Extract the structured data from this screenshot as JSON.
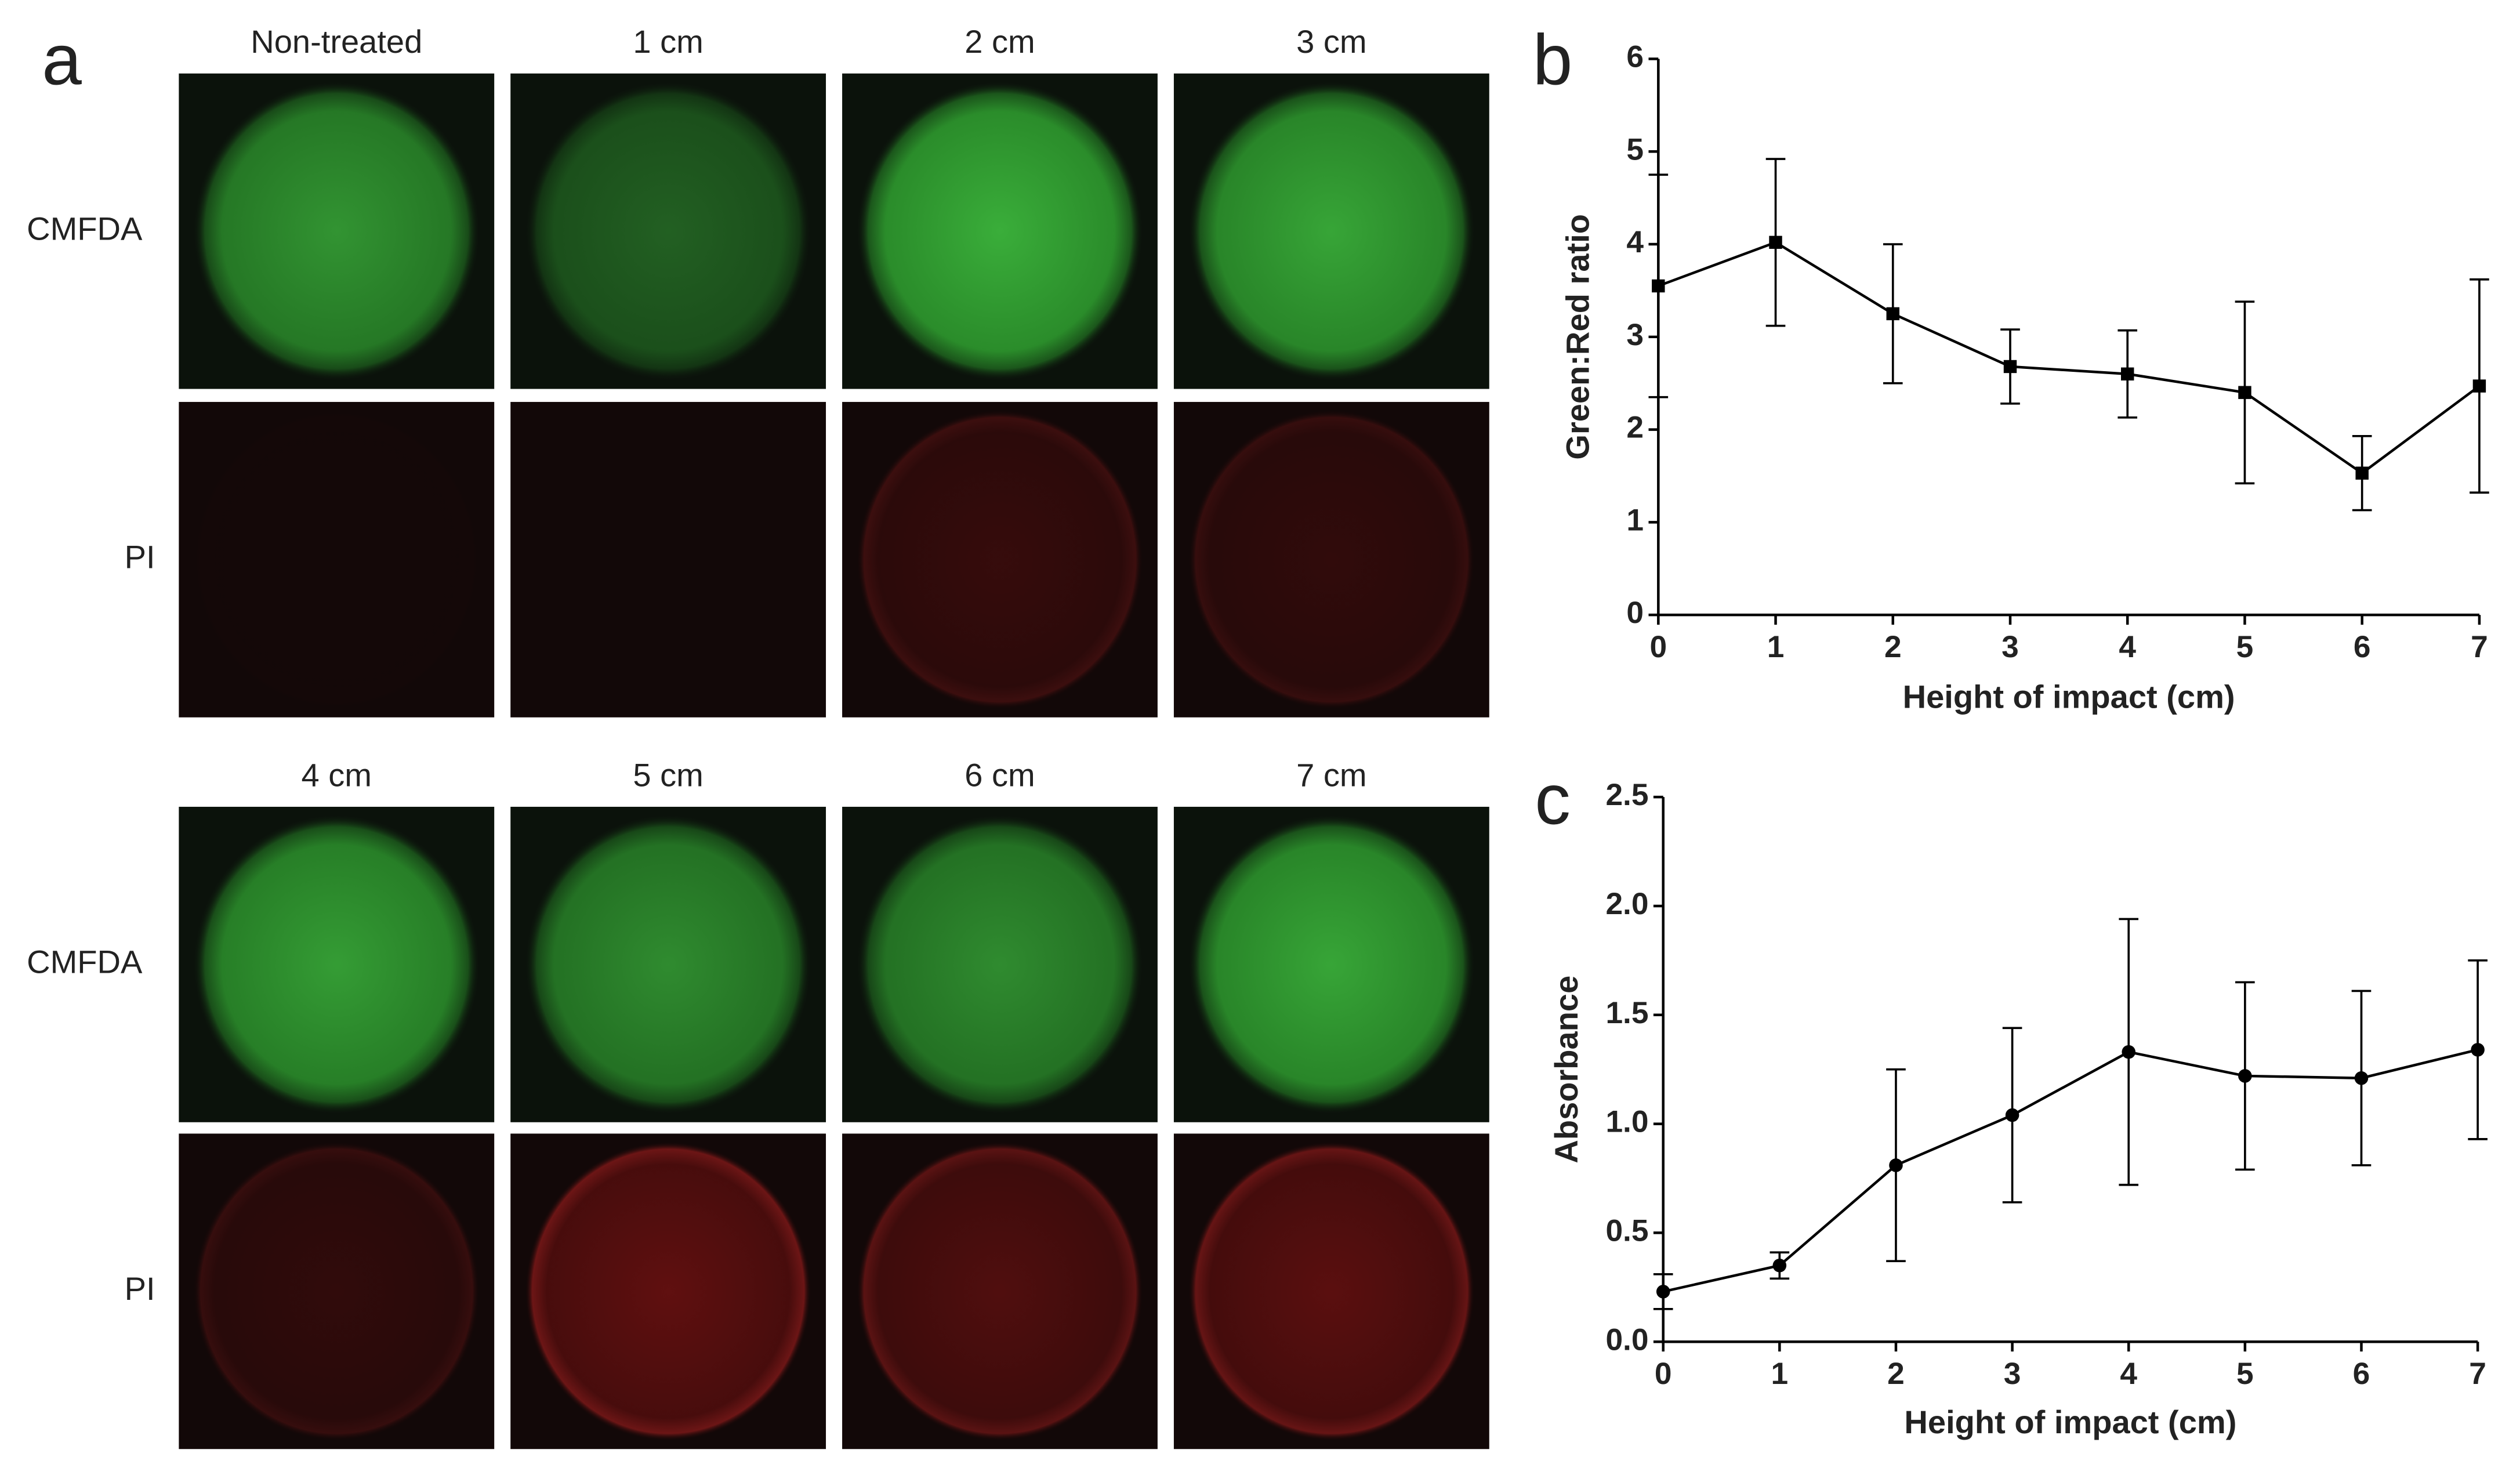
{
  "panel_a": {
    "label": "a",
    "groups": [
      {
        "columns": [
          "Non-treated",
          "1 cm",
          "2 cm",
          "3 cm"
        ],
        "rows": [
          "CMFDA",
          "PI"
        ]
      },
      {
        "columns": [
          "4 cm",
          "5 cm",
          "6 cm",
          "7 cm"
        ],
        "rows": [
          "CMFDA",
          "PI"
        ]
      }
    ]
  },
  "chart_data": [
    {
      "type": "line",
      "panel_label": "b",
      "xlabel": "Height of impact (cm)",
      "ylabel": "Green:Red ratio",
      "marker": "square",
      "x": [
        0,
        1,
        2,
        3,
        4,
        5,
        6,
        7
      ],
      "series": [
        {
          "color": "#000000",
          "values": [
            3.55,
            4.02,
            3.25,
            2.68,
            2.6,
            2.4,
            1.53,
            2.47
          ],
          "errors": [
            1.2,
            0.9,
            0.75,
            0.4,
            0.47,
            0.98,
            0.4,
            1.15
          ]
        }
      ],
      "xlim": [
        0,
        7
      ],
      "ylim": [
        0,
        6
      ],
      "xticks": [
        0,
        1,
        2,
        3,
        4,
        5,
        6,
        7
      ],
      "yticks": [
        0,
        1,
        2,
        3,
        4,
        5,
        6
      ]
    },
    {
      "type": "line",
      "panel_label": "c",
      "xlabel": "Height of impact (cm)",
      "ylabel": "Absorbance",
      "marker": "circle",
      "x": [
        0,
        1,
        2,
        3,
        4,
        5,
        6,
        7
      ],
      "series": [
        {
          "color": "#000000",
          "values": [
            0.23,
            0.35,
            0.81,
            1.04,
            1.33,
            1.22,
            1.21,
            1.34
          ],
          "errors": [
            0.08,
            0.06,
            0.44,
            0.4,
            0.61,
            0.43,
            0.4,
            0.41
          ]
        }
      ],
      "xlim": [
        0,
        7
      ],
      "ylim": [
        0,
        2.5
      ],
      "xticks": [
        0,
        1,
        2,
        3,
        4,
        5,
        6,
        7
      ],
      "yticks": [
        {
          "value": 0,
          "label": "0.0"
        },
        0.5,
        {
          "value": 1,
          "label": "1.0"
        },
        1.5,
        {
          "value": 2,
          "label": "2.0"
        },
        2.5
      ]
    }
  ]
}
